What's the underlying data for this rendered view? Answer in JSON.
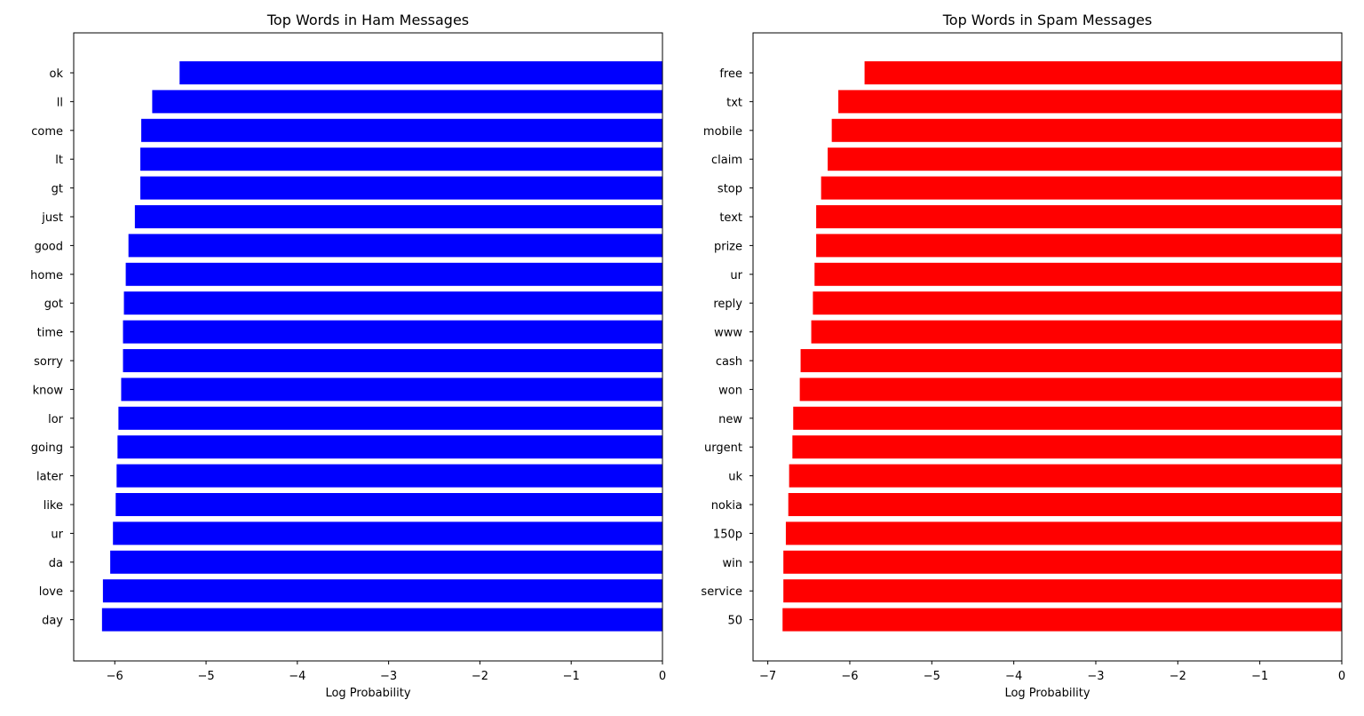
{
  "chart_data": [
    {
      "type": "bar",
      "orientation": "horizontal",
      "title": "Top Words in Ham Messages",
      "xlabel": "Log Probability",
      "ylabel": "",
      "xlim": [
        -6.45,
        0
      ],
      "xticks": [
        -6,
        -5,
        -4,
        -3,
        -2,
        -1,
        0
      ],
      "categories": [
        "ok",
        "ll",
        "come",
        "lt",
        "gt",
        "just",
        "good",
        "home",
        "got",
        "time",
        "sorry",
        "know",
        "lor",
        "going",
        "later",
        "like",
        "ur",
        "da",
        "love",
        "day"
      ],
      "values": [
        -5.29,
        -5.59,
        -5.71,
        -5.72,
        -5.72,
        -5.78,
        -5.85,
        -5.88,
        -5.9,
        -5.91,
        -5.91,
        -5.93,
        -5.96,
        -5.97,
        -5.98,
        -5.99,
        -6.02,
        -6.05,
        -6.13,
        -6.14
      ],
      "color": "#0000ff",
      "grid": false,
      "legend": "none"
    },
    {
      "type": "bar",
      "orientation": "horizontal",
      "title": "Top Words in Spam Messages",
      "xlabel": "Log Probability",
      "ylabel": "",
      "xlim": [
        -7.18,
        0
      ],
      "xticks": [
        -7,
        -6,
        -5,
        -4,
        -3,
        -2,
        -1,
        0
      ],
      "categories": [
        "free",
        "txt",
        "mobile",
        "claim",
        "stop",
        "text",
        "prize",
        "ur",
        "reply",
        "www",
        "cash",
        "won",
        "new",
        "urgent",
        "uk",
        "nokia",
        "150p",
        "win",
        "service",
        "50"
      ],
      "values": [
        -5.82,
        -6.14,
        -6.22,
        -6.27,
        -6.35,
        -6.41,
        -6.41,
        -6.43,
        -6.45,
        -6.47,
        -6.6,
        -6.61,
        -6.69,
        -6.7,
        -6.74,
        -6.75,
        -6.78,
        -6.81,
        -6.81,
        -6.82
      ],
      "color": "#ff0000",
      "grid": false,
      "legend": "none"
    }
  ]
}
